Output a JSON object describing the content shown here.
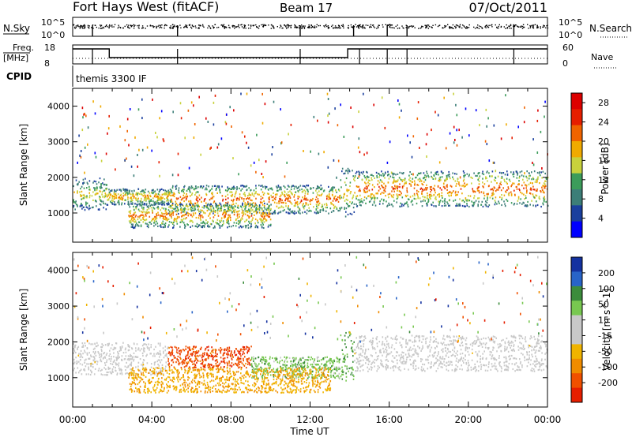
{
  "header": {
    "station": "Fort Hays West (fitACF)",
    "beam": "Beam 17",
    "date": "07/Oct/2011"
  },
  "top_panels": {
    "nsky_label": "N.Sky",
    "nsky_ticks": [
      "10^5",
      "10^0"
    ],
    "nsearch_label": "N.Search",
    "nsearch_ticks": [
      "10^5",
      "10^0"
    ],
    "freq_label": "Freq.",
    "freq_unit": "[MHz]",
    "freq_ticks": [
      18,
      8
    ],
    "nave_label": "Nave",
    "nave_ticks": [
      60,
      0
    ],
    "cpid_label": "CPID",
    "cpid_value": "themis 3300 IF"
  },
  "colors": {
    "power": [
      "#0000ff",
      "#1a3f9e",
      "#3c7e78",
      "#3c9c5a",
      "#c8d23c",
      "#f0aa00",
      "#f06400",
      "#e61e00",
      "#dc0000"
    ],
    "velocity": [
      "#1432a0",
      "#2864c8",
      "#3c8c3c",
      "#78c850",
      "#c8c8c8",
      "#c8c8c8",
      "#f0b400",
      "#f08c00",
      "#f05000",
      "#e61e00"
    ]
  },
  "chart_data": [
    {
      "type": "heatmap",
      "name": "power",
      "ylabel": "Slant Range [km]",
      "xlabel": "Time UT",
      "xticks": [
        "00:00",
        "04:00",
        "08:00",
        "12:00",
        "16:00",
        "20:00",
        "00:00"
      ],
      "yticks": [
        1000,
        2000,
        3000,
        4000
      ],
      "xlim": [
        0,
        24
      ],
      "ylim": [
        180,
        4500
      ],
      "colorbar": {
        "label": "Power [dB]",
        "ticks": [
          4,
          8,
          12,
          16,
          20,
          24,
          28
        ],
        "range": [
          0,
          30
        ]
      },
      "scatter_bands": [
        {
          "t0": 0.0,
          "t1": 1.7,
          "r0": 1100,
          "r1": 2000,
          "level": 0.55
        },
        {
          "t0": 1.7,
          "t1": 5.0,
          "r0": 1250,
          "r1": 1700,
          "level": 0.7
        },
        {
          "t0": 4.8,
          "t1": 13.5,
          "r0": 1000,
          "r1": 1800,
          "level": 0.8
        },
        {
          "t0": 2.8,
          "t1": 10.0,
          "r0": 600,
          "r1": 1300,
          "level": 0.75
        },
        {
          "t0": 13.5,
          "t1": 14.2,
          "r0": 900,
          "r1": 2300,
          "level": 0.6
        },
        {
          "t0": 14.2,
          "t1": 24.0,
          "r0": 1200,
          "r1": 2200,
          "level": 0.82
        }
      ]
    },
    {
      "type": "heatmap",
      "name": "velocity",
      "ylabel": "Slant Range [km]",
      "xlabel": "Time UT",
      "xticks": [
        "00:00",
        "04:00",
        "08:00",
        "12:00",
        "16:00",
        "20:00",
        "00:00"
      ],
      "yticks": [
        1000,
        2000,
        3000,
        4000
      ],
      "xlim": [
        0,
        24
      ],
      "ylim": [
        180,
        4500
      ],
      "colorbar": {
        "label": "Velocity [m s^-1]",
        "ticks": [
          200,
          100,
          50,
          15,
          -15,
          -50,
          -100,
          -200
        ],
        "range": [
          -250,
          250
        ]
      },
      "scatter_bands": [
        {
          "t0": 0.0,
          "t1": 4.8,
          "r0": 1100,
          "r1": 2000,
          "level": -0.05
        },
        {
          "t0": 4.8,
          "t1": 9.0,
          "r0": 1300,
          "r1": 1900,
          "level": -0.8
        },
        {
          "t0": 9.0,
          "t1": 13.5,
          "r0": 1000,
          "r1": 1600,
          "level": 0.35
        },
        {
          "t0": 2.8,
          "t1": 13.0,
          "r0": 600,
          "r1": 1300,
          "level": -0.4
        },
        {
          "t0": 13.5,
          "t1": 14.2,
          "r0": 900,
          "r1": 2300,
          "level": 0.45
        },
        {
          "t0": 14.2,
          "t1": 24.0,
          "r0": 1200,
          "r1": 2200,
          "level": -0.05
        }
      ]
    }
  ]
}
